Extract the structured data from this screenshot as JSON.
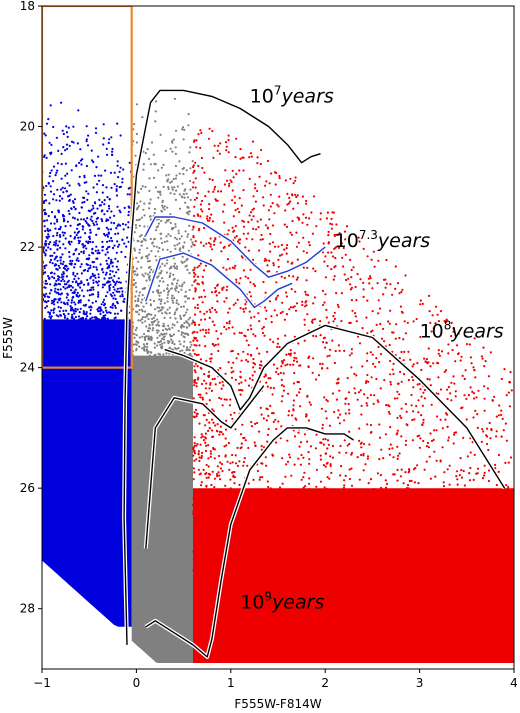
{
  "chart_data": {
    "type": "scatter",
    "title": "",
    "xlabel": "F555W-F814W",
    "ylabel": "F555W",
    "xlim": [
      -1,
      4
    ],
    "ylim": [
      29,
      18
    ],
    "y_inverted": true,
    "x_ticks": [
      -1,
      0,
      1,
      2,
      3,
      4
    ],
    "x_tick_labels": [
      "−1",
      "0",
      "1",
      "2",
      "3",
      "4"
    ],
    "y_ticks": [
      18,
      20,
      22,
      24,
      26,
      28
    ],
    "y_tick_labels": [
      "18",
      "20",
      "22",
      "24",
      "26",
      "28"
    ],
    "grid": false,
    "legend": "none",
    "colors": {
      "blue_population": "#0000dd",
      "gray_population": "#808080",
      "red_population": "#ee0000",
      "isochrone": "#000000",
      "intermediate_isochrone": "#1f3fd8",
      "selection_box": "#e8892f"
    },
    "populations": [
      {
        "color_range": [
          -1.0,
          -0.05
        ],
        "density_mag_limit": 23.2,
        "faint_limit": 28.3,
        "sparse_bright_limit": 19.5
      },
      {
        "color_range": [
          -0.05,
          0.6
        ],
        "density_mag_limit": 23.8,
        "faint_limit": 28.9,
        "sparse_bright_limit": 19.3
      },
      {
        "color_range": [
          0.6,
          4.0
        ],
        "density_mag_limit": 26.0,
        "faint_limit": 28.9,
        "sparse_bright_limit": 20.0
      }
    ],
    "selection_box": {
      "x_range": [
        -1.0,
        -0.05
      ],
      "y_range": [
        18.0,
        24.0
      ]
    },
    "isochrones": [
      {
        "label_base": "10",
        "label_exp": "7",
        "label_unit": "years",
        "label_pos": [
          1.2,
          19.6
        ],
        "points": [
          [
            -0.1,
            28.6
          ],
          [
            -0.13,
            26.5
          ],
          [
            -0.12,
            24.5
          ],
          [
            -0.1,
            23.0
          ],
          [
            -0.05,
            21.8
          ],
          [
            0.0,
            20.8
          ],
          [
            0.1,
            20.0
          ],
          [
            0.15,
            19.6
          ],
          [
            0.25,
            19.4
          ],
          [
            0.5,
            19.4
          ],
          [
            0.8,
            19.5
          ],
          [
            1.1,
            19.7
          ],
          [
            1.4,
            20.0
          ],
          [
            1.6,
            20.3
          ],
          [
            1.75,
            20.6
          ],
          [
            1.85,
            20.5
          ],
          [
            1.95,
            20.45
          ]
        ]
      },
      {
        "label_base": "10",
        "label_exp": "7.3",
        "label_unit": "years",
        "label_pos": [
          2.1,
          22.0
        ],
        "points": [
          [
            0.1,
            21.8
          ],
          [
            0.2,
            21.5
          ],
          [
            0.4,
            21.5
          ],
          [
            0.7,
            21.6
          ],
          [
            1.0,
            21.9
          ],
          [
            1.25,
            22.3
          ],
          [
            1.4,
            22.5
          ],
          [
            1.6,
            22.4
          ],
          [
            1.8,
            22.25
          ],
          [
            2.0,
            22.0
          ]
        ]
      },
      {
        "label_base": "10",
        "label_exp": "7.3",
        "label_unit": "years",
        "label_pos": null,
        "points": [
          [
            0.1,
            22.9
          ],
          [
            0.25,
            22.2
          ],
          [
            0.5,
            22.1
          ],
          [
            0.8,
            22.3
          ],
          [
            1.1,
            22.7
          ],
          [
            1.25,
            23.0
          ],
          [
            1.35,
            22.9
          ],
          [
            1.5,
            22.7
          ],
          [
            1.65,
            22.6
          ]
        ]
      },
      {
        "label_base": "10",
        "label_exp": "8",
        "label_unit": "years",
        "label_pos": [
          3.0,
          23.5
        ],
        "points": [
          [
            0.3,
            23.7
          ],
          [
            0.5,
            23.8
          ],
          [
            0.8,
            24.0
          ],
          [
            1.0,
            24.3
          ],
          [
            1.1,
            24.7
          ],
          [
            1.2,
            24.5
          ],
          [
            1.35,
            24.0
          ],
          [
            1.6,
            23.6
          ],
          [
            2.0,
            23.3
          ],
          [
            2.5,
            23.5
          ],
          [
            3.0,
            24.2
          ],
          [
            3.5,
            25.0
          ],
          [
            3.9,
            26.0
          ]
        ]
      },
      {
        "label_base": "10",
        "label_exp": "8",
        "label_unit": "years",
        "label_pos": null,
        "points": [
          [
            0.1,
            27.0
          ],
          [
            0.2,
            25.0
          ],
          [
            0.4,
            24.5
          ],
          [
            0.7,
            24.6
          ],
          [
            0.9,
            24.9
          ],
          [
            1.0,
            25.0
          ],
          [
            1.1,
            24.8
          ],
          [
            1.2,
            24.6
          ],
          [
            1.35,
            24.3
          ]
        ]
      },
      {
        "label_base": "10",
        "label_exp": "9",
        "label_unit": "years",
        "label_pos": [
          1.1,
          28.0
        ],
        "points": [
          [
            0.1,
            28.3
          ],
          [
            0.2,
            28.2
          ],
          [
            0.4,
            28.4
          ],
          [
            0.6,
            28.6
          ],
          [
            0.75,
            28.8
          ],
          [
            0.8,
            28.5
          ],
          [
            0.9,
            27.5
          ],
          [
            1.0,
            26.6
          ],
          [
            1.2,
            25.7
          ],
          [
            1.45,
            25.2
          ],
          [
            1.6,
            25.0
          ],
          [
            1.8,
            25.0
          ],
          [
            2.0,
            25.1
          ],
          [
            2.2,
            25.1
          ],
          [
            2.3,
            25.2
          ]
        ]
      }
    ]
  }
}
